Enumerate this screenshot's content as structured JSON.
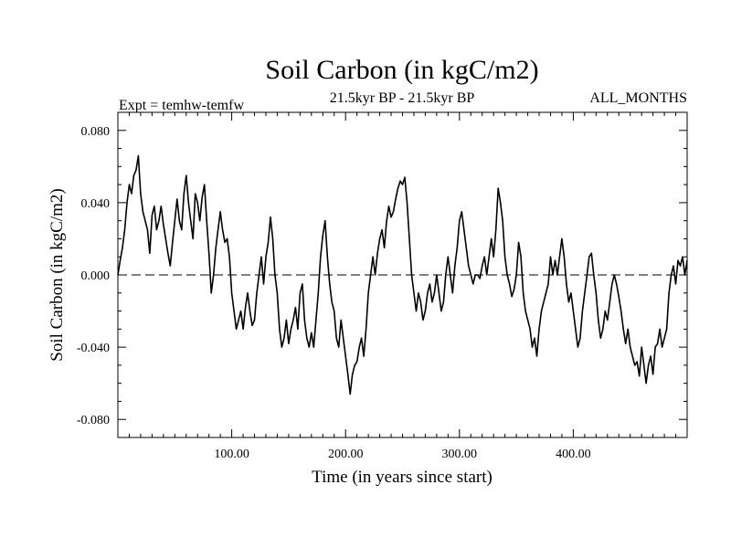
{
  "chart_data": {
    "type": "line",
    "title": "Soil Carbon (in kgC/m2)",
    "subtitle_left": "Expt = temhw-temfw",
    "subtitle_center": "21.5kyr BP - 21.5kyr BP",
    "subtitle_right": "ALL_MONTHS",
    "xlabel": "Time (in years since start)",
    "ylabel": "Soil Carbon (in kgC/m2)",
    "xlim": [
      0,
      500
    ],
    "ylim": [
      -0.09,
      0.09
    ],
    "x_ticks": [
      100,
      200,
      300,
      400
    ],
    "x_tick_labels": [
      "100.00",
      "200.00",
      "300.00",
      "400.00"
    ],
    "y_ticks": [
      0.08,
      0.04,
      0.0,
      -0.04,
      -0.08
    ],
    "y_tick_labels": [
      "0.080",
      "0.040",
      "0.000",
      "-0.040",
      "-0.080"
    ],
    "reference_line": 0.0,
    "series": [
      {
        "name": "Soil Carbon",
        "color": "#000000",
        "points": [
          [
            0,
            0.0
          ],
          [
            2,
            0.008
          ],
          [
            4,
            0.015
          ],
          [
            6,
            0.025
          ],
          [
            8,
            0.04
          ],
          [
            10,
            0.05
          ],
          [
            12,
            0.045
          ],
          [
            14,
            0.055
          ],
          [
            16,
            0.058
          ],
          [
            18,
            0.066
          ],
          [
            20,
            0.045
          ],
          [
            22,
            0.035
          ],
          [
            24,
            0.03
          ],
          [
            26,
            0.025
          ],
          [
            28,
            0.012
          ],
          [
            30,
            0.033
          ],
          [
            32,
            0.038
          ],
          [
            34,
            0.025
          ],
          [
            36,
            0.03
          ],
          [
            38,
            0.038
          ],
          [
            40,
            0.028
          ],
          [
            42,
            0.02
          ],
          [
            44,
            0.012
          ],
          [
            46,
            0.005
          ],
          [
            48,
            0.018
          ],
          [
            50,
            0.03
          ],
          [
            52,
            0.042
          ],
          [
            54,
            0.03
          ],
          [
            56,
            0.025
          ],
          [
            58,
            0.045
          ],
          [
            60,
            0.055
          ],
          [
            62,
            0.04
          ],
          [
            64,
            0.03
          ],
          [
            66,
            0.02
          ],
          [
            68,
            0.045
          ],
          [
            70,
            0.04
          ],
          [
            72,
            0.03
          ],
          [
            74,
            0.043
          ],
          [
            76,
            0.05
          ],
          [
            78,
            0.03
          ],
          [
            80,
            0.012
          ],
          [
            82,
            -0.01
          ],
          [
            84,
            0.0
          ],
          [
            86,
            0.015
          ],
          [
            88,
            0.025
          ],
          [
            90,
            0.035
          ],
          [
            92,
            0.025
          ],
          [
            94,
            0.018
          ],
          [
            96,
            0.02
          ],
          [
            98,
            0.01
          ],
          [
            100,
            -0.01
          ],
          [
            102,
            -0.02
          ],
          [
            104,
            -0.03
          ],
          [
            106,
            -0.025
          ],
          [
            108,
            -0.02
          ],
          [
            110,
            -0.03
          ],
          [
            112,
            -0.018
          ],
          [
            114,
            -0.01
          ],
          [
            116,
            -0.02
          ],
          [
            118,
            -0.028
          ],
          [
            120,
            -0.025
          ],
          [
            122,
            -0.01
          ],
          [
            124,
            0.0
          ],
          [
            126,
            0.01
          ],
          [
            128,
            -0.005
          ],
          [
            130,
            0.01
          ],
          [
            132,
            0.018
          ],
          [
            134,
            0.032
          ],
          [
            136,
            0.02
          ],
          [
            138,
            0.0
          ],
          [
            140,
            -0.01
          ],
          [
            142,
            -0.03
          ],
          [
            144,
            -0.04
          ],
          [
            146,
            -0.035
          ],
          [
            148,
            -0.025
          ],
          [
            150,
            -0.038
          ],
          [
            152,
            -0.03
          ],
          [
            154,
            -0.025
          ],
          [
            156,
            -0.018
          ],
          [
            158,
            -0.03
          ],
          [
            160,
            -0.01
          ],
          [
            162,
            -0.005
          ],
          [
            164,
            -0.025
          ],
          [
            166,
            -0.035
          ],
          [
            168,
            -0.04
          ],
          [
            170,
            -0.032
          ],
          [
            172,
            -0.04
          ],
          [
            174,
            -0.025
          ],
          [
            176,
            -0.01
          ],
          [
            178,
            0.01
          ],
          [
            180,
            0.022
          ],
          [
            182,
            0.03
          ],
          [
            184,
            0.01
          ],
          [
            186,
            -0.005
          ],
          [
            188,
            -0.015
          ],
          [
            190,
            -0.02
          ],
          [
            192,
            -0.035
          ],
          [
            194,
            -0.04
          ],
          [
            196,
            -0.025
          ],
          [
            198,
            -0.035
          ],
          [
            200,
            -0.045
          ],
          [
            202,
            -0.055
          ],
          [
            204,
            -0.066
          ],
          [
            206,
            -0.055
          ],
          [
            208,
            -0.05
          ],
          [
            210,
            -0.048
          ],
          [
            212,
            -0.04
          ],
          [
            214,
            -0.035
          ],
          [
            216,
            -0.045
          ],
          [
            218,
            -0.03
          ],
          [
            220,
            -0.01
          ],
          [
            222,
            0.0
          ],
          [
            224,
            0.01
          ],
          [
            226,
            0.0
          ],
          [
            228,
            0.012
          ],
          [
            230,
            0.02
          ],
          [
            232,
            0.025
          ],
          [
            234,
            0.015
          ],
          [
            236,
            0.03
          ],
          [
            238,
            0.038
          ],
          [
            240,
            0.032
          ],
          [
            242,
            0.035
          ],
          [
            244,
            0.042
          ],
          [
            246,
            0.048
          ],
          [
            248,
            0.052
          ],
          [
            250,
            0.05
          ],
          [
            252,
            0.054
          ],
          [
            254,
            0.04
          ],
          [
            256,
            0.02
          ],
          [
            258,
            0.0
          ],
          [
            260,
            -0.01
          ],
          [
            262,
            -0.02
          ],
          [
            264,
            -0.01
          ],
          [
            266,
            -0.015
          ],
          [
            268,
            -0.025
          ],
          [
            270,
            -0.02
          ],
          [
            272,
            -0.01
          ],
          [
            274,
            -0.005
          ],
          [
            276,
            -0.015
          ],
          [
            278,
            -0.01
          ],
          [
            280,
            0.0
          ],
          [
            282,
            -0.01
          ],
          [
            284,
            -0.02
          ],
          [
            286,
            -0.015
          ],
          [
            288,
            0.0
          ],
          [
            290,
            0.01
          ],
          [
            292,
            0.0
          ],
          [
            294,
            -0.01
          ],
          [
            296,
            0.005
          ],
          [
            298,
            0.015
          ],
          [
            300,
            0.03
          ],
          [
            302,
            0.035
          ],
          [
            304,
            0.025
          ],
          [
            306,
            0.015
          ],
          [
            308,
            0.005
          ],
          [
            310,
            0.0
          ],
          [
            312,
            -0.005
          ],
          [
            314,
            0.0
          ],
          [
            316,
            0.0
          ],
          [
            318,
            -0.002
          ],
          [
            320,
            0.005
          ],
          [
            322,
            0.01
          ],
          [
            324,
            0.0
          ],
          [
            326,
            0.01
          ],
          [
            328,
            0.02
          ],
          [
            330,
            0.01
          ],
          [
            332,
            0.025
          ],
          [
            334,
            0.048
          ],
          [
            336,
            0.04
          ],
          [
            338,
            0.03
          ],
          [
            340,
            0.01
          ],
          [
            342,
            0.0
          ],
          [
            344,
            -0.005
          ],
          [
            346,
            -0.012
          ],
          [
            348,
            -0.008
          ],
          [
            350,
            0.0
          ],
          [
            352,
            0.018
          ],
          [
            354,
            0.01
          ],
          [
            356,
            -0.01
          ],
          [
            358,
            -0.02
          ],
          [
            360,
            -0.025
          ],
          [
            362,
            -0.03
          ],
          [
            364,
            -0.04
          ],
          [
            366,
            -0.035
          ],
          [
            368,
            -0.045
          ],
          [
            370,
            -0.03
          ],
          [
            372,
            -0.02
          ],
          [
            374,
            -0.015
          ],
          [
            376,
            -0.01
          ],
          [
            378,
            -0.005
          ],
          [
            380,
            0.01
          ],
          [
            382,
            0.0
          ],
          [
            384,
            0.008
          ],
          [
            386,
            0.0
          ],
          [
            388,
            0.01
          ],
          [
            390,
            0.02
          ],
          [
            392,
            0.01
          ],
          [
            394,
            -0.005
          ],
          [
            396,
            -0.015
          ],
          [
            398,
            -0.01
          ],
          [
            400,
            -0.02
          ],
          [
            402,
            -0.03
          ],
          [
            404,
            -0.04
          ],
          [
            406,
            -0.035
          ],
          [
            408,
            -0.02
          ],
          [
            410,
            -0.01
          ],
          [
            412,
            0.0
          ],
          [
            414,
            0.01
          ],
          [
            416,
            0.012
          ],
          [
            418,
            0.0
          ],
          [
            420,
            -0.01
          ],
          [
            422,
            -0.025
          ],
          [
            424,
            -0.035
          ],
          [
            426,
            -0.03
          ],
          [
            428,
            -0.02
          ],
          [
            430,
            -0.025
          ],
          [
            432,
            -0.015
          ],
          [
            434,
            -0.005
          ],
          [
            436,
            0.0
          ],
          [
            438,
            -0.005
          ],
          [
            440,
            -0.012
          ],
          [
            442,
            -0.02
          ],
          [
            444,
            -0.03
          ],
          [
            446,
            -0.038
          ],
          [
            448,
            -0.03
          ],
          [
            450,
            -0.04
          ],
          [
            452,
            -0.045
          ],
          [
            454,
            -0.05
          ],
          [
            456,
            -0.048
          ],
          [
            458,
            -0.056
          ],
          [
            460,
            -0.04
          ],
          [
            462,
            -0.05
          ],
          [
            464,
            -0.06
          ],
          [
            466,
            -0.05
          ],
          [
            468,
            -0.045
          ],
          [
            470,
            -0.055
          ],
          [
            472,
            -0.04
          ],
          [
            474,
            -0.038
          ],
          [
            476,
            -0.03
          ],
          [
            478,
            -0.04
          ],
          [
            480,
            -0.035
          ],
          [
            482,
            -0.03
          ],
          [
            484,
            -0.01
          ],
          [
            486,
            0.0
          ],
          [
            488,
            0.005
          ],
          [
            490,
            -0.005
          ],
          [
            492,
            0.008
          ],
          [
            494,
            0.005
          ],
          [
            496,
            0.01
          ],
          [
            498,
            0.0
          ],
          [
            500,
            0.008
          ]
        ]
      }
    ]
  }
}
